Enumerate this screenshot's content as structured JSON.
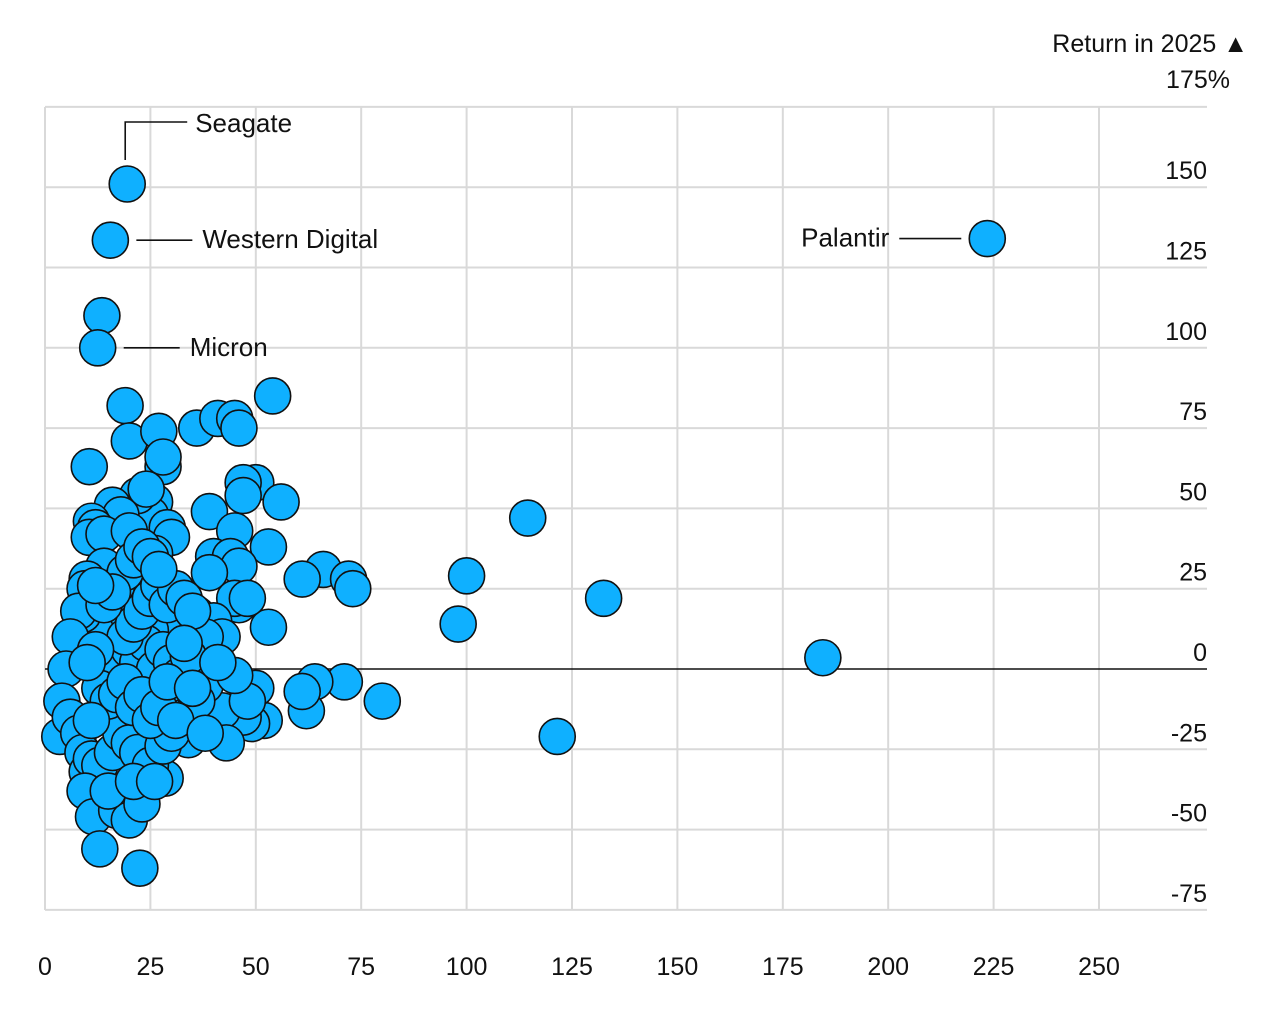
{
  "chart_data": {
    "type": "scatter",
    "title": "",
    "xlabel": "",
    "ylabel": "Return in 2025",
    "ylabel_marker": "▲",
    "y_top_tick": "175%",
    "xlim": [
      0,
      275
    ],
    "ylim": [
      -87,
      175
    ],
    "x_ticks": [
      0,
      25,
      50,
      75,
      100,
      125,
      150,
      175,
      200,
      225,
      250
    ],
    "y_ticks": [
      150,
      125,
      100,
      75,
      50,
      25,
      0,
      -25,
      -50,
      -75
    ],
    "grid": true,
    "dot_color": "#0fb0ff",
    "annotations": [
      {
        "label": "Seagate",
        "x": 19.5,
        "y": 151
      },
      {
        "label": "Western Digital",
        "x": 15.5,
        "y": 133.5
      },
      {
        "label": "Micron",
        "x": 12.5,
        "y": 100
      },
      {
        "label": "Palantir",
        "x": 223.5,
        "y": 134
      }
    ],
    "points": [
      [
        19.5,
        151
      ],
      [
        15.5,
        133.5
      ],
      [
        13.5,
        110
      ],
      [
        12.5,
        100
      ],
      [
        223.5,
        134
      ],
      [
        19,
        82
      ],
      [
        54,
        85
      ],
      [
        20,
        71
      ],
      [
        27,
        74
      ],
      [
        36,
        75
      ],
      [
        41,
        78
      ],
      [
        45,
        78
      ],
      [
        46,
        75
      ],
      [
        10.5,
        63
      ],
      [
        28,
        63
      ],
      [
        28,
        66
      ],
      [
        50,
        58
      ],
      [
        47,
        58
      ],
      [
        47,
        54
      ],
      [
        56,
        52
      ],
      [
        39,
        49
      ],
      [
        26,
        52
      ],
      [
        25,
        48
      ],
      [
        22,
        54
      ],
      [
        24,
        56
      ],
      [
        16,
        51
      ],
      [
        18,
        48
      ],
      [
        11,
        46
      ],
      [
        12,
        44
      ],
      [
        10.5,
        41
      ],
      [
        14,
        42
      ],
      [
        20,
        43
      ],
      [
        29,
        44
      ],
      [
        30,
        41
      ],
      [
        45,
        43
      ],
      [
        53,
        38
      ],
      [
        40,
        35
      ],
      [
        44,
        35
      ],
      [
        46,
        32
      ],
      [
        39,
        30
      ],
      [
        26,
        36
      ],
      [
        23,
        32
      ],
      [
        17,
        30
      ],
      [
        14,
        32
      ],
      [
        10,
        28
      ],
      [
        9.5,
        25
      ],
      [
        66,
        31
      ],
      [
        61,
        28
      ],
      [
        72,
        28
      ],
      [
        73,
        25
      ],
      [
        100,
        29
      ],
      [
        98,
        14
      ],
      [
        114.5,
        47
      ],
      [
        132.5,
        22
      ],
      [
        121.5,
        -21
      ],
      [
        184.5,
        3.5
      ],
      [
        80,
        -10
      ],
      [
        71,
        -4
      ],
      [
        64,
        -4
      ],
      [
        62,
        -13
      ],
      [
        61,
        -7
      ],
      [
        52,
        -16
      ],
      [
        49,
        -17
      ],
      [
        47,
        -15
      ],
      [
        50,
        -6
      ],
      [
        42,
        -13
      ],
      [
        43,
        -23
      ],
      [
        34,
        -22
      ],
      [
        28.5,
        -34
      ],
      [
        38,
        -5
      ],
      [
        31,
        -8
      ],
      [
        24,
        -14
      ],
      [
        27,
        -6
      ],
      [
        46,
        20
      ],
      [
        45,
        22
      ],
      [
        53,
        13
      ],
      [
        36,
        17
      ],
      [
        40,
        15
      ],
      [
        42,
        10
      ],
      [
        38,
        10
      ],
      [
        30,
        15
      ],
      [
        25,
        12
      ],
      [
        20,
        22
      ],
      [
        18,
        18
      ],
      [
        15,
        14
      ],
      [
        12,
        12
      ],
      [
        9,
        17
      ],
      [
        8,
        18
      ],
      [
        6,
        10
      ],
      [
        5,
        0
      ],
      [
        4,
        -10
      ],
      [
        3.5,
        -21
      ],
      [
        6,
        -15
      ],
      [
        8,
        -20
      ],
      [
        9,
        -26
      ],
      [
        10,
        -32
      ],
      [
        11,
        -28
      ],
      [
        13,
        -30
      ],
      [
        16,
        -26
      ],
      [
        18,
        -20
      ],
      [
        20,
        -23
      ],
      [
        22,
        -26
      ],
      [
        25,
        -30
      ],
      [
        28,
        -24
      ],
      [
        30,
        -20
      ],
      [
        33,
        -15
      ],
      [
        36,
        -10
      ],
      [
        9.5,
        -38
      ],
      [
        11.5,
        -46
      ],
      [
        13,
        -56
      ],
      [
        17,
        -44
      ],
      [
        20,
        -47
      ],
      [
        23,
        -42
      ],
      [
        15,
        -38
      ],
      [
        22.5,
        -62
      ],
      [
        21,
        -35
      ],
      [
        26,
        -35
      ],
      [
        14,
        0
      ],
      [
        16,
        4
      ],
      [
        18,
        0
      ],
      [
        20,
        6
      ],
      [
        22,
        2
      ],
      [
        24,
        8
      ],
      [
        26,
        0
      ],
      [
        28,
        6
      ],
      [
        30,
        2
      ],
      [
        32,
        -2
      ],
      [
        34,
        4
      ],
      [
        19,
        10
      ],
      [
        21,
        14
      ],
      [
        23,
        18
      ],
      [
        25,
        22
      ],
      [
        27,
        26
      ],
      [
        29,
        20
      ],
      [
        31,
        25
      ],
      [
        33,
        22
      ],
      [
        35,
        18
      ],
      [
        17,
        26
      ],
      [
        19,
        30
      ],
      [
        21,
        34
      ],
      [
        23,
        38
      ],
      [
        25,
        35
      ],
      [
        27,
        31
      ],
      [
        12,
        6
      ],
      [
        13,
        -6
      ],
      [
        15,
        -10
      ],
      [
        17,
        -8
      ],
      [
        19,
        -4
      ],
      [
        21,
        -12
      ],
      [
        23,
        -8
      ],
      [
        25,
        -16
      ],
      [
        27,
        -12
      ],
      [
        29,
        -4
      ],
      [
        31,
        -16
      ],
      [
        33,
        8
      ],
      [
        35,
        -6
      ],
      [
        14,
        20
      ],
      [
        16,
        24
      ],
      [
        10,
        2
      ],
      [
        11,
        -16
      ],
      [
        12,
        26
      ],
      [
        48,
        22
      ],
      [
        48,
        -10
      ],
      [
        45,
        -2
      ],
      [
        41,
        2
      ],
      [
        38,
        -20
      ]
    ]
  }
}
